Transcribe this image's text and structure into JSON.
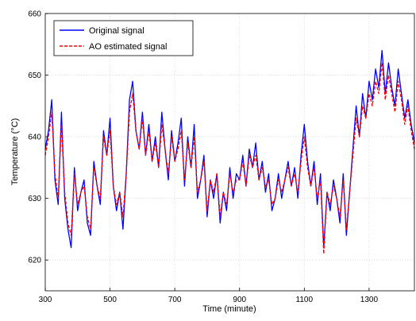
{
  "chart_data": {
    "type": "line",
    "title": "",
    "xlabel": "Time (minute)",
    "ylabel": "Temperature (°C)",
    "xlim": [
      300,
      1440
    ],
    "ylim": [
      615,
      660
    ],
    "xticks": [
      300,
      500,
      700,
      900,
      1100,
      1300
    ],
    "yticks": [
      620,
      630,
      640,
      650,
      660
    ],
    "grid": true,
    "legend_position": "top-left",
    "series": [
      {
        "name": "Original signal",
        "color": "#0000ff",
        "line_style": "solid",
        "x": [
          300,
          310,
          320,
          330,
          340,
          350,
          360,
          370,
          380,
          390,
          400,
          410,
          420,
          430,
          440,
          450,
          460,
          470,
          480,
          490,
          500,
          510,
          520,
          530,
          540,
          550,
          560,
          570,
          580,
          590,
          600,
          610,
          620,
          630,
          640,
          650,
          660,
          670,
          680,
          690,
          700,
          710,
          720,
          730,
          740,
          750,
          760,
          770,
          780,
          790,
          800,
          810,
          820,
          830,
          840,
          850,
          860,
          870,
          880,
          890,
          900,
          910,
          920,
          930,
          940,
          950,
          960,
          970,
          980,
          990,
          1000,
          1010,
          1020,
          1030,
          1040,
          1050,
          1060,
          1070,
          1080,
          1090,
          1100,
          1110,
          1120,
          1130,
          1140,
          1150,
          1160,
          1170,
          1180,
          1190,
          1200,
          1210,
          1220,
          1230,
          1240,
          1250,
          1260,
          1270,
          1280,
          1290,
          1300,
          1310,
          1320,
          1330,
          1340,
          1350,
          1360,
          1370,
          1380,
          1390,
          1400,
          1410,
          1420,
          1430,
          1440
        ],
        "y": [
          638,
          641,
          646,
          633,
          629,
          644,
          630,
          625,
          622,
          635,
          628,
          631,
          633,
          626,
          624,
          636,
          632,
          629,
          641,
          637,
          643,
          632,
          628,
          631,
          625,
          634,
          646,
          649,
          641,
          638,
          644,
          637,
          642,
          636,
          640,
          635,
          644,
          638,
          633,
          641,
          636,
          639,
          643,
          632,
          640,
          635,
          642,
          630,
          633,
          637,
          627,
          633,
          630,
          634,
          626,
          631,
          628,
          635,
          630,
          634,
          633,
          637,
          632,
          638,
          635,
          639,
          633,
          636,
          631,
          634,
          628,
          630,
          634,
          630,
          633,
          636,
          632,
          635,
          630,
          637,
          642,
          636,
          632,
          636,
          629,
          634,
          622,
          631,
          628,
          633,
          630,
          626,
          634,
          624,
          631,
          638,
          645,
          640,
          647,
          643,
          649,
          646,
          651,
          648,
          654,
          647,
          652,
          648,
          645,
          651,
          647,
          643,
          646,
          642,
          639
        ]
      },
      {
        "name": "AO estimated signal",
        "color": "#ff0000",
        "line_style": "dashed",
        "x": [
          300,
          310,
          320,
          330,
          340,
          350,
          360,
          370,
          380,
          390,
          400,
          410,
          420,
          430,
          440,
          450,
          460,
          470,
          480,
          490,
          500,
          510,
          520,
          530,
          540,
          550,
          560,
          570,
          580,
          590,
          600,
          610,
          620,
          630,
          640,
          650,
          660,
          670,
          680,
          690,
          700,
          710,
          720,
          730,
          740,
          750,
          760,
          770,
          780,
          790,
          800,
          810,
          820,
          830,
          840,
          850,
          860,
          870,
          880,
          890,
          900,
          910,
          920,
          930,
          940,
          950,
          960,
          970,
          980,
          990,
          1000,
          1010,
          1020,
          1030,
          1040,
          1050,
          1060,
          1070,
          1080,
          1090,
          1100,
          1110,
          1120,
          1130,
          1140,
          1150,
          1160,
          1170,
          1180,
          1190,
          1200,
          1210,
          1220,
          1230,
          1240,
          1250,
          1260,
          1270,
          1280,
          1290,
          1300,
          1310,
          1320,
          1330,
          1340,
          1350,
          1360,
          1370,
          1380,
          1390,
          1400,
          1410,
          1420,
          1430,
          1440
        ],
        "y": [
          637,
          640,
          644,
          634,
          630,
          642,
          631,
          626,
          624,
          634,
          629,
          631,
          632,
          627,
          625,
          635,
          632,
          630,
          640,
          637,
          641,
          632,
          629,
          631,
          627,
          634,
          644,
          647,
          641,
          638,
          643,
          637,
          641,
          636,
          639,
          635,
          642,
          638,
          634,
          640,
          636,
          638,
          641,
          633,
          639,
          635,
          640,
          631,
          633,
          636,
          628,
          633,
          631,
          634,
          627,
          631,
          629,
          634,
          631,
          633,
          633,
          636,
          632,
          637,
          635,
          637,
          633,
          635,
          632,
          633,
          629,
          630,
          633,
          631,
          633,
          635,
          632,
          634,
          631,
          636,
          640,
          635,
          632,
          635,
          630,
          633,
          621,
          631,
          629,
          632,
          630,
          627,
          633,
          625,
          631,
          637,
          643,
          640,
          645,
          643,
          647,
          645,
          649,
          647,
          652,
          646,
          650,
          647,
          644,
          649,
          646,
          642,
          645,
          641,
          638
        ]
      }
    ]
  }
}
